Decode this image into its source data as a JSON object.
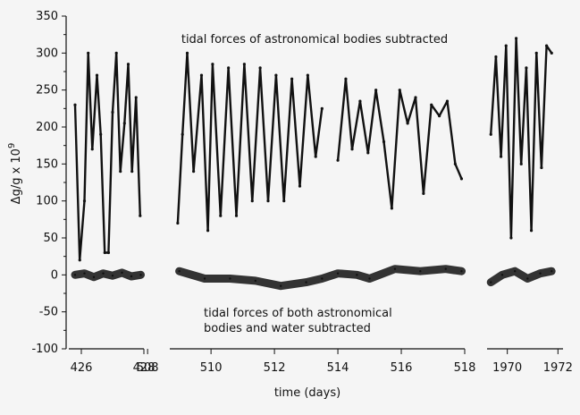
{
  "chart_data": {
    "type": "line",
    "xlabel": "time (days)",
    "ylabel": "Δg/g x 10",
    "ylabel_superscript": "9",
    "ylim": [
      -100,
      350
    ],
    "yticks": [
      "350",
      "300",
      "250",
      "200",
      "150",
      "100",
      "50",
      "0",
      "-50",
      "-100"
    ],
    "ytick_values": [
      350,
      300,
      250,
      200,
      150,
      100,
      50,
      0,
      -50,
      -100
    ],
    "grid": false,
    "legend": "none",
    "panels": [
      {
        "xlim": [
          425.6,
          428.0
        ],
        "xticks": [
          "426",
          "428"
        ],
        "xtick_values": [
          426,
          428
        ],
        "series": [
          {
            "x": [
              425.8,
              425.95,
              426.1,
              426.22,
              426.35,
              426.5,
              426.62,
              426.75,
              426.87,
              427.0,
              427.12,
              427.25,
              427.38,
              427.5,
              427.62,
              427.75,
              427.88
            ],
            "values": [
              230,
              20,
              100,
              300,
              170,
              270,
              190,
              30,
              30,
              220,
              300,
              140,
              205,
              285,
              140,
              240,
              80
            ]
          },
          {
            "x": [
              425.8,
              426.1,
              426.4,
              426.7,
              427.0,
              427.3,
              427.6,
              427.9
            ],
            "values": [
              0,
              2,
              -3,
              2,
              -1,
              3,
              -2,
              0
            ]
          }
        ]
      },
      {
        "xlim": [
          508.7,
          518.0
        ],
        "xticks": [
          "508",
          "510",
          "512",
          "514",
          "516",
          "518"
        ],
        "xtick_values": [
          508,
          510,
          512,
          514,
          516,
          518
        ],
        "series": [
          {
            "x": [
              508.95,
              509.1,
              509.25,
              509.45,
              509.7,
              509.9,
              510.05,
              510.3,
              510.55,
              510.8,
              511.05,
              511.3,
              511.55,
              511.8,
              512.05,
              512.3,
              512.55,
              512.8,
              513.05,
              513.3,
              513.5
            ],
            "values": [
              70,
              190,
              300,
              140,
              270,
              60,
              285,
              80,
              280,
              80,
              285,
              100,
              280,
              100,
              270,
              100,
              265,
              120,
              270,
              160,
              225
            ],
            "note": "segment 1"
          },
          {
            "x": [
              514.0,
              514.25,
              514.45,
              514.7,
              514.95,
              515.2,
              515.45,
              515.7,
              515.95,
              516.2,
              516.45,
              516.7,
              516.95,
              517.2,
              517.45,
              517.7,
              517.9
            ],
            "values": [
              155,
              265,
              170,
              235,
              165,
              250,
              180,
              90,
              250,
              205,
              240,
              110,
              230,
              215,
              235,
              150,
              130
            ]
          },
          {
            "x": [
              509.0,
              509.8,
              510.6,
              511.4,
              512.2,
              513.0,
              513.5,
              514.0,
              514.6,
              515.0,
              515.8,
              516.6,
              517.4,
              517.9
            ],
            "values": [
              5,
              -5,
              -5,
              -8,
              -15,
              -10,
              -5,
              2,
              0,
              -5,
              8,
              5,
              8,
              5
            ]
          }
        ]
      },
      {
        "xlim": [
          1969.2,
          1972.2
        ],
        "xticks": [
          "1970",
          "1972"
        ],
        "xtick_values": [
          1970,
          1972
        ],
        "series": [
          {
            "x": [
              1969.35,
              1969.55,
              1969.75,
              1969.95,
              1970.15,
              1970.35,
              1970.55,
              1970.75,
              1970.95,
              1971.15,
              1971.35,
              1971.55,
              1971.75
            ],
            "values": [
              190,
              295,
              160,
              310,
              50,
              320,
              150,
              280,
              60,
              300,
              145,
              310,
              300
            ]
          },
          {
            "x": [
              1969.35,
              1969.8,
              1970.3,
              1970.8,
              1971.3,
              1971.75
            ],
            "values": [
              -10,
              0,
              5,
              -5,
              2,
              5
            ]
          }
        ]
      }
    ],
    "annotations": [
      "tidal forces of astronomical bodies subtracted",
      "tidal forces of both astronomical",
      "bodies and water subtracted"
    ]
  }
}
